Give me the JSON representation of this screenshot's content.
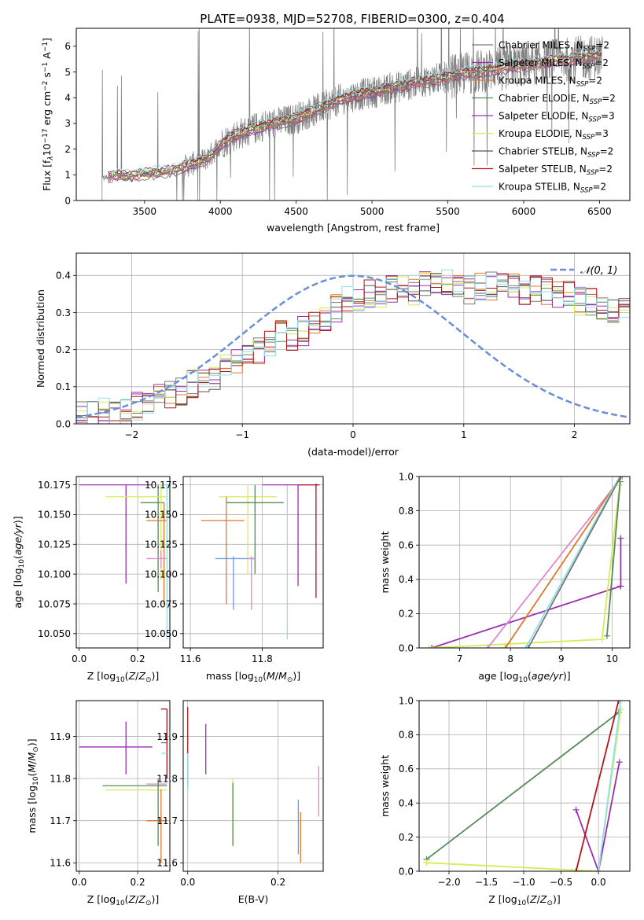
{
  "figure_title": "PLATE=0938, MJD=52708, FIBERID=0300, z=0.404",
  "colors": {
    "cm": "#777777",
    "sm": "#9a2fb0",
    "km": "#e0782a",
    "ce": "#5a8a5a",
    "se": "#9a2fb0",
    "ke": "#d4ec58",
    "cs": "#555555",
    "ss": "#b0151a",
    "ks": "#8fe1ea",
    "normal": "#6a8ed8",
    "extra_pink": "#dd88cc",
    "extra_blue": "#6a9ae0"
  },
  "chart_data": [
    {
      "id": "spectrum",
      "type": "line",
      "title": "PLATE=0938, MJD=52708, FIBERID=0300, z=0.404",
      "xlabel": "wavelength [Angstrom, rest frame]",
      "ylabel_parts": [
        "Flux [f",
        "λ",
        "10",
        "−17",
        " erg cm",
        "−2",
        " s",
        "−1",
        " A",
        "−1",
        "]"
      ],
      "xlim": [
        3050,
        6700
      ],
      "ylim": [
        0,
        6.7
      ],
      "xticks": [
        3500,
        4000,
        4500,
        5000,
        5500,
        6000,
        6500
      ],
      "yticks": [
        0,
        1,
        2,
        3,
        4,
        5,
        6
      ],
      "legend_position": "upper-right",
      "data_color": "#808080",
      "data_profile": {
        "x": [
          3220,
          3300,
          3400,
          3500,
          3600,
          3700,
          3800,
          3900,
          3950,
          4000,
          4100,
          4200,
          4300,
          4400,
          4500,
          4600,
          4700,
          4800,
          4900,
          5000,
          5100,
          5200,
          5300,
          5400,
          5500,
          5600,
          5700,
          5800,
          5900,
          6000,
          6100,
          6200,
          6300,
          6400,
          6500
        ],
        "y": [
          0.85,
          1.0,
          0.95,
          1.05,
          1.1,
          1.2,
          1.4,
          1.6,
          1.85,
          2.2,
          2.55,
          2.75,
          2.95,
          3.05,
          3.2,
          3.45,
          3.7,
          3.95,
          4.1,
          4.2,
          4.35,
          4.45,
          4.6,
          4.7,
          4.8,
          4.95,
          5.0,
          5.1,
          5.2,
          5.3,
          5.35,
          5.45,
          5.5,
          5.55,
          5.6
        ]
      },
      "legend": [
        {
          "key": "cm",
          "main": "Chabrier MILES, N",
          "sub": "SSP",
          "tail": "=2"
        },
        {
          "key": "sm",
          "main": "Salpeter MILES, N",
          "sub": "SSP",
          "tail": "=2"
        },
        {
          "key": "km",
          "main": "Kroupa MILES, N",
          "sub": "SSP",
          "tail": "=2"
        },
        {
          "key": "ce",
          "main": "Chabrier ELODIE, N",
          "sub": "SSP",
          "tail": "=2"
        },
        {
          "key": "se",
          "main": "Salpeter ELODIE, N",
          "sub": "SSP",
          "tail": "=3"
        },
        {
          "key": "ke",
          "main": "Kroupa ELODIE, N",
          "sub": "SSP",
          "tail": "=3"
        },
        {
          "key": "cs",
          "main": "Chabrier STELIB, N",
          "sub": "SSP",
          "tail": "=2"
        },
        {
          "key": "ss",
          "main": "Salpeter STELIB, N",
          "sub": "SSP",
          "tail": "=2"
        },
        {
          "key": "ks",
          "main": "Kroupa STELIB, N",
          "sub": "SSP",
          "tail": "=2"
        }
      ]
    },
    {
      "id": "residuals",
      "type": "line",
      "xlabel": "(data-model)/error",
      "ylabel": "Normed distribution",
      "xlim": [
        -2.5,
        2.5
      ],
      "ylim": [
        0,
        0.46
      ],
      "xticks": [
        -2,
        -1,
        0,
        1,
        2
      ],
      "yticks": [
        0.0,
        0.1,
        0.2,
        0.3,
        0.4
      ],
      "grid": true,
      "legend_position": "upper-right",
      "legend": [
        {
          "key": "normal",
          "label": "𝒩(0, 1)"
        }
      ],
      "bin_width": 0.1,
      "bin_start": -2.5,
      "base_histogram": [
        0.02,
        0.02,
        0.03,
        0.03,
        0.04,
        0.05,
        0.06,
        0.07,
        0.08,
        0.09,
        0.11,
        0.12,
        0.13,
        0.15,
        0.17,
        0.19,
        0.2,
        0.21,
        0.24,
        0.23,
        0.25,
        0.27,
        0.28,
        0.31,
        0.33,
        0.34,
        0.35,
        0.35,
        0.36,
        0.38,
        0.36,
        0.37,
        0.38,
        0.38,
        0.37,
        0.36,
        0.37,
        0.37,
        0.38,
        0.38,
        0.36,
        0.37,
        0.36,
        0.35,
        0.35,
        0.33,
        0.33,
        0.32,
        0.3,
        0.31,
        0.28,
        0.27,
        0.24,
        0.22,
        0.21,
        0.21,
        0.21,
        0.19,
        0.18,
        0.18,
        0.16,
        0.15,
        0.14,
        0.14,
        0.13,
        0.12,
        0.12,
        0.11,
        0.1,
        0.09
      ]
    },
    {
      "id": "age_vs_Z",
      "type": "scatter",
      "xlabel": "Z [log10(Z/Z⊙)]",
      "ylabel": "age  [log10(age/yr)]",
      "xlim": [
        -0.01,
        0.31
      ],
      "ylim": [
        10.038,
        10.182
      ],
      "xticks": [
        0.0,
        0.2
      ],
      "yticks": [
        10.05,
        10.075,
        10.1,
        10.125,
        10.15,
        10.175
      ],
      "grid": true,
      "points": [
        {
          "key": "sm",
          "x": 0.16,
          "y": 10.175,
          "xerr": [
            0.0,
            0.25
          ],
          "yerr": [
            0.083,
            0.0
          ]
        },
        {
          "key": "ce",
          "x": 0.27,
          "y": 10.16,
          "xerr": [
            0.21,
            0.29
          ],
          "yerr": [
            10.085,
            10.175
          ]
        },
        {
          "key": "ke",
          "x": 0.28,
          "y": 10.165,
          "xerr": [
            0.09,
            0.3
          ],
          "yerr": [
            10.095,
            10.175
          ]
        },
        {
          "key": "km",
          "x": 0.29,
          "y": 10.145,
          "xerr": [
            0.23,
            0.3
          ],
          "yerr": [
            10.075,
            10.16
          ]
        },
        {
          "key": "extra_pink",
          "x": 0.28,
          "y": 10.113,
          "xerr": [
            0.23,
            0.3
          ],
          "yerr": [
            10.105,
            10.12
          ]
        },
        {
          "key": "ks",
          "x": 0.3,
          "y": 10.175,
          "xerr": [
            0.28,
            0.3
          ],
          "yerr": [
            10.045,
            10.176
          ]
        }
      ]
    },
    {
      "id": "age_vs_mass",
      "type": "scatter",
      "xlabel": "mass [log10(M/M⊙)]",
      "xlim": [
        11.58,
        11.97
      ],
      "ylim": [
        10.038,
        10.182
      ],
      "xticks": [
        11.6,
        11.8
      ],
      "yticks": [
        10.05,
        10.075,
        10.1,
        10.125,
        10.15,
        10.175
      ],
      "grid": true,
      "points": [
        {
          "key": "ke",
          "x": 11.76,
          "y": 10.165,
          "xerr": [
            11.68,
            11.84
          ],
          "yerr": [
            10.1,
            10.175
          ]
        },
        {
          "key": "ce",
          "x": 11.78,
          "y": 10.16,
          "xerr": [
            11.7,
            11.86
          ],
          "yerr": [
            10.1,
            10.175
          ]
        },
        {
          "key": "km",
          "x": 11.7,
          "y": 10.145,
          "xerr": [
            11.63,
            11.75
          ],
          "yerr": [
            10.075,
            10.165
          ]
        },
        {
          "key": "extra_blue",
          "x": 11.72,
          "y": 10.113,
          "xerr": [
            11.67,
            11.78
          ],
          "yerr": [
            10.07,
            10.115
          ]
        },
        {
          "key": "extra_pink",
          "x": 11.77,
          "y": 10.113,
          "xerr": [
            11.76,
            11.78
          ],
          "yerr": [
            10.07,
            10.115
          ]
        },
        {
          "key": "ks",
          "x": 11.87,
          "y": 10.175,
          "xerr": [
            11.86,
            11.88
          ],
          "yerr": [
            10.045,
            10.175
          ]
        },
        {
          "key": "sm",
          "x": 11.9,
          "y": 10.175,
          "xerr": [
            11.8,
            11.96
          ],
          "yerr": [
            10.09,
            10.175
          ]
        },
        {
          "key": "ss",
          "x": 11.95,
          "y": 10.175,
          "xerr": [
            11.9,
            11.96
          ],
          "yerr": [
            10.08,
            10.176
          ]
        }
      ]
    },
    {
      "id": "massweight_vs_age",
      "type": "line",
      "xlabel": "age  [log10(age/yr)]",
      "ylabel": "mass weight",
      "xlim": [
        6.2,
        10.35
      ],
      "ylim": [
        0,
        1
      ],
      "xticks": [
        7,
        8,
        9,
        10
      ],
      "yticks": [
        0.0,
        0.2,
        0.4,
        0.6,
        0.8,
        1.0
      ],
      "grid": true,
      "series": [
        {
          "key": "sm",
          "x": [
            6.45,
            10.17
          ],
          "y": [
            0,
            0.36
          ]
        },
        {
          "key": "ke",
          "x": [
            6.4,
            9.8,
            10.15
          ],
          "y": [
            0,
            0.05,
            0.95
          ]
        },
        {
          "key": "extra_pink",
          "x": [
            7.55,
            10.2
          ],
          "y": [
            0,
            1.0
          ]
        },
        {
          "key": "km",
          "x": [
            7.9,
            10.17
          ],
          "y": [
            0,
            1.0
          ]
        },
        {
          "key": "ks",
          "x": [
            8.3,
            10.15
          ],
          "y": [
            0,
            1.0
          ]
        },
        {
          "key": "cm",
          "x": [
            8.35,
            10.17
          ],
          "y": [
            0,
            1.0
          ]
        },
        {
          "key": "ce",
          "x": [
            9.9,
            10.16
          ],
          "y": [
            0.07,
            0.97
          ]
        },
        {
          "key": "sm",
          "x": [
            10.17,
            10.17
          ],
          "y": [
            0.36,
            0.64
          ]
        }
      ]
    },
    {
      "id": "mass_vs_Z",
      "type": "scatter",
      "xlabel": "Z [log10(Z/Z⊙)]",
      "ylabel": "mass [log10(M/M⊙)]",
      "xlim": [
        -0.01,
        0.31
      ],
      "ylim": [
        11.58,
        11.985
      ],
      "xticks": [
        0.0,
        0.2
      ],
      "yticks": [
        11.6,
        11.7,
        11.8,
        11.9
      ],
      "grid": true,
      "points": [
        {
          "key": "sm",
          "x": 0.16,
          "y": 11.875,
          "xerr": [
            0.0,
            0.25
          ],
          "yerr": [
            11.81,
            11.935
          ]
        },
        {
          "key": "ce",
          "x": 0.2,
          "y": 11.783,
          "xerr": [
            0.08,
            0.3
          ],
          "yerr": [
            11.783,
            11.783
          ]
        },
        {
          "key": "ke",
          "x": 0.2,
          "y": 11.773,
          "xerr": [
            0.09,
            0.3
          ],
          "yerr": [
            11.773,
            11.773
          ]
        },
        {
          "key": "km",
          "x": 0.28,
          "y": 11.7,
          "xerr": [
            0.23,
            0.3
          ],
          "yerr": [
            11.6,
            11.775
          ]
        },
        {
          "key": "extra_pink",
          "x": 0.28,
          "y": 11.787,
          "xerr": [
            0.23,
            0.3
          ],
          "yerr": [
            11.787,
            11.787
          ]
        },
        {
          "key": "ce",
          "x": 0.27,
          "y": 11.72,
          "xerr": [
            0.27,
            0.27
          ],
          "yerr": [
            11.64,
            11.8
          ]
        },
        {
          "key": "ss",
          "x": 0.3,
          "y": 11.965,
          "xerr": [
            0.28,
            0.3
          ],
          "yerr": [
            11.8,
            11.965
          ]
        },
        {
          "key": "ks",
          "x": 0.3,
          "y": 11.86,
          "xerr": [
            0.28,
            0.3
          ],
          "yerr": [
            11.86,
            11.86
          ]
        },
        {
          "key": "cm",
          "x": 0.3,
          "y": 11.885,
          "xerr": [
            0.28,
            0.3
          ],
          "yerr": [
            11.885,
            11.885
          ]
        }
      ]
    },
    {
      "id": "mass_vs_EBV",
      "type": "scatter",
      "xlabel": "E(B-V)",
      "xlim": [
        -0.01,
        0.3
      ],
      "ylim": [
        11.58,
        11.985
      ],
      "xticks": [
        0.0,
        0.2
      ],
      "yticks": [
        11.6,
        11.7,
        11.8,
        11.9
      ],
      "grid": true,
      "points": [
        {
          "key": "ss",
          "x": 0.0,
          "y": 11.9,
          "xerr": [
            0.0,
            0.0
          ],
          "yerr": [
            11.78,
            11.97
          ]
        },
        {
          "key": "ks",
          "x": 0.0,
          "y": 11.82,
          "xerr": [
            0.0,
            0.0
          ],
          "yerr": [
            11.77,
            11.86
          ]
        },
        {
          "key": "sm",
          "x": 0.04,
          "y": 11.87,
          "xerr": [
            0.04,
            0.04
          ],
          "yerr": [
            11.81,
            11.93
          ]
        },
        {
          "key": "ke",
          "x": 0.1,
          "y": 11.72,
          "xerr": [
            0.1,
            0.1
          ],
          "yerr": [
            11.64,
            11.8
          ]
        },
        {
          "key": "ce",
          "x": 0.1,
          "y": 11.72,
          "xerr": [
            0.1,
            0.1
          ],
          "yerr": [
            11.64,
            11.79
          ]
        },
        {
          "key": "extra_blue",
          "x": 0.245,
          "y": 11.69,
          "xerr": [
            0.245,
            0.245
          ],
          "yerr": [
            11.62,
            11.75
          ]
        },
        {
          "key": "km",
          "x": 0.25,
          "y": 11.66,
          "xerr": [
            0.25,
            0.25
          ],
          "yerr": [
            11.6,
            11.72
          ]
        },
        {
          "key": "extra_pink",
          "x": 0.29,
          "y": 11.78,
          "xerr": [
            0.29,
            0.29
          ],
          "yerr": [
            11.71,
            11.83
          ]
        }
      ]
    },
    {
      "id": "massweight_vs_Z",
      "type": "line",
      "xlabel": "Z [log10(Z/Z⊙)]",
      "ylabel": "mass weight",
      "xlim": [
        -2.4,
        0.42
      ],
      "ylim": [
        0,
        1
      ],
      "xticks": [
        -2.0,
        -1.5,
        -1.0,
        -0.5,
        0.0
      ],
      "yticks": [
        0.0,
        0.2,
        0.4,
        0.6,
        0.8,
        1.0
      ],
      "grid": true,
      "series": [
        {
          "key": "ce",
          "x": [
            -2.3,
            0.27
          ],
          "y": [
            0.07,
            0.93
          ]
        },
        {
          "key": "ke",
          "x": [
            -2.3,
            0.0,
            0.3
          ],
          "y": [
            0.05,
            0.0,
            0.95
          ]
        },
        {
          "key": "sm",
          "x": [
            -0.3,
            0.0,
            0.28
          ],
          "y": [
            0.36,
            0.0,
            0.64
          ]
        },
        {
          "key": "ss",
          "x": [
            -0.3,
            0.27
          ],
          "y": [
            0.0,
            1.0
          ]
        },
        {
          "key": "ks",
          "x": [
            0.0,
            0.3
          ],
          "y": [
            0.0,
            1.0
          ]
        }
      ]
    }
  ]
}
